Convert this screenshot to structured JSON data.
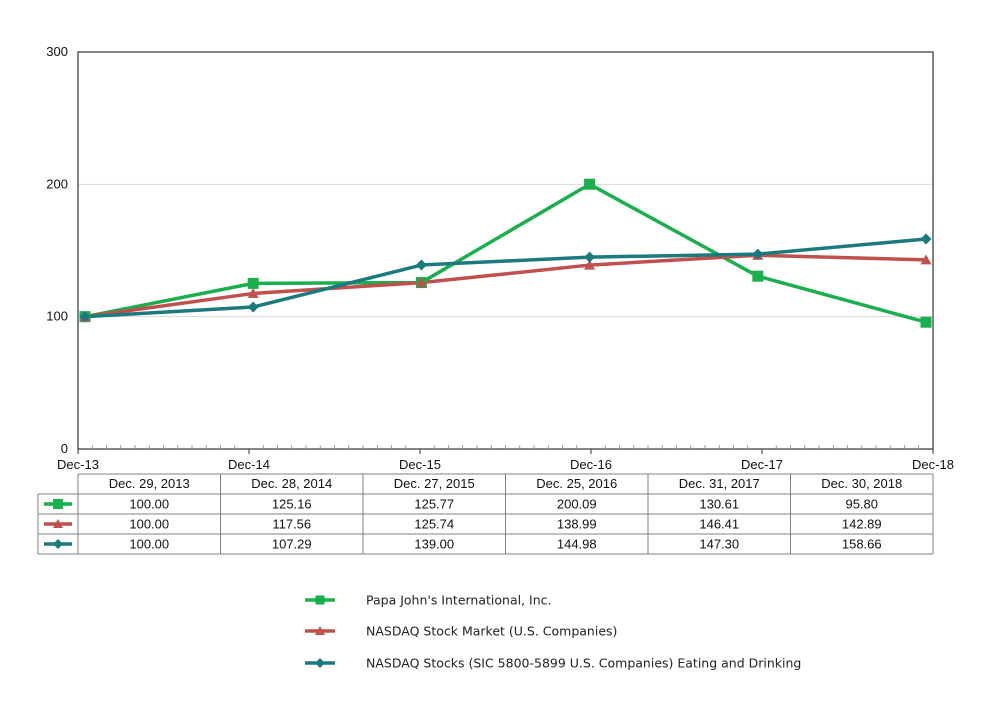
{
  "colors": {
    "papa": "#1aaf4d",
    "nasdaq": "#c0504d",
    "sic": "#1b7a7e",
    "grid": "#d9d9d9",
    "axis": "#333333",
    "table_border": "#808080"
  },
  "chart_data": {
    "type": "line",
    "title": "",
    "xlabel": "",
    "ylabel": "",
    "x": [
      "Dec-13",
      "Dec-14",
      "Dec-15",
      "Dec-16",
      "Dec-17",
      "Dec-18"
    ],
    "ylim": [
      0,
      300
    ],
    "yticks": [
      0,
      100,
      200,
      300
    ],
    "grid": true,
    "series": [
      {
        "name": "Papa John's International, Inc.",
        "marker": "square",
        "color_key": "papa",
        "values": [
          100.0,
          125.16,
          125.77,
          200.09,
          130.61,
          95.8
        ],
        "labels": [
          "100.00",
          "125.16",
          "125.77",
          "200.09",
          "130.61",
          "95.80"
        ]
      },
      {
        "name": "NASDAQ Stock Market (U.S. Companies)",
        "marker": "triangle",
        "color_key": "nasdaq",
        "values": [
          100.0,
          117.56,
          125.74,
          138.99,
          146.41,
          142.89
        ],
        "labels": [
          "100.00",
          "117.56",
          "125.74",
          "138.99",
          "146.41",
          "142.89"
        ]
      },
      {
        "name": "NASDAQ Stocks (SIC 5800-5899 U.S. Companies) Eating and Drinking",
        "marker": "diamond",
        "color_key": "sic",
        "values": [
          100.0,
          107.29,
          139.0,
          144.98,
          147.3,
          158.66
        ],
        "labels": [
          "100.00",
          "107.29",
          "139.00",
          "144.98",
          "147.30",
          "158.66"
        ]
      }
    ],
    "table_dates": [
      "Dec. 29, 2013",
      "Dec. 28, 2014",
      "Dec. 27, 2015",
      "Dec. 25, 2016",
      "Dec. 31, 2017",
      "Dec. 30, 2018"
    ],
    "legend_position": "bottom-center"
  }
}
